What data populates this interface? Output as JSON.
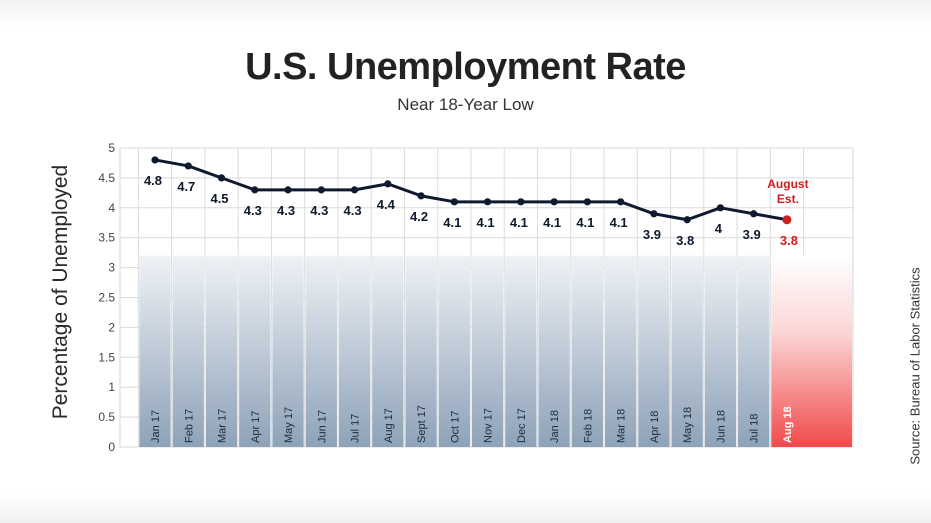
{
  "title": "U.S. Unemployment Rate",
  "subtitle": "Near 18-Year Low",
  "source": "Source: Bureau of Labor Statistics",
  "chart_data": {
    "type": "line",
    "title": "U.S. Unemployment Rate",
    "subtitle": "Near 18-Year Low",
    "xlabel": "",
    "ylabel": "Percentage of Unemployed",
    "ylim": [
      0,
      5
    ],
    "yticks": [
      0,
      0.5,
      1,
      1.5,
      2,
      2.5,
      3,
      3.5,
      4,
      4.5,
      5
    ],
    "grid": true,
    "categories": [
      "Jan 17",
      "Feb 17",
      "Mar 17",
      "Apr 17",
      "May 17",
      "Jun 17",
      "Jul 17",
      "Aug 17",
      "Sept 17",
      "Oct 17",
      "Nov 17",
      "Dec 17",
      "Jan 18",
      "Feb 18",
      "Mar 18",
      "Apr 18",
      "May 18",
      "Jun 18",
      "Jul 18",
      "Aug 18"
    ],
    "values": [
      4.8,
      4.7,
      4.5,
      4.3,
      4.3,
      4.3,
      4.3,
      4.4,
      4.2,
      4.1,
      4.1,
      4.1,
      4.1,
      4.1,
      4.1,
      3.9,
      3.8,
      4,
      3.9,
      3.8
    ],
    "data_labels": [
      "4.8",
      "4.7",
      "4.5",
      "4.3",
      "4.3",
      "4.3",
      "4.3",
      "4.4",
      "4.2",
      "4.1",
      "4.1",
      "4.1",
      "4.1",
      "4.1",
      "4.1",
      "3.9",
      "3.8",
      "4",
      "3.9",
      "3.8"
    ],
    "estimate": {
      "category": "Aug 18",
      "label_line1": "August",
      "label_line2": "Est."
    },
    "colors": {
      "line": "#0f1a2e",
      "estimate": "#cc1f1f",
      "column_top": "#eef2f6",
      "column_bottom": "#8ea2b8"
    }
  }
}
